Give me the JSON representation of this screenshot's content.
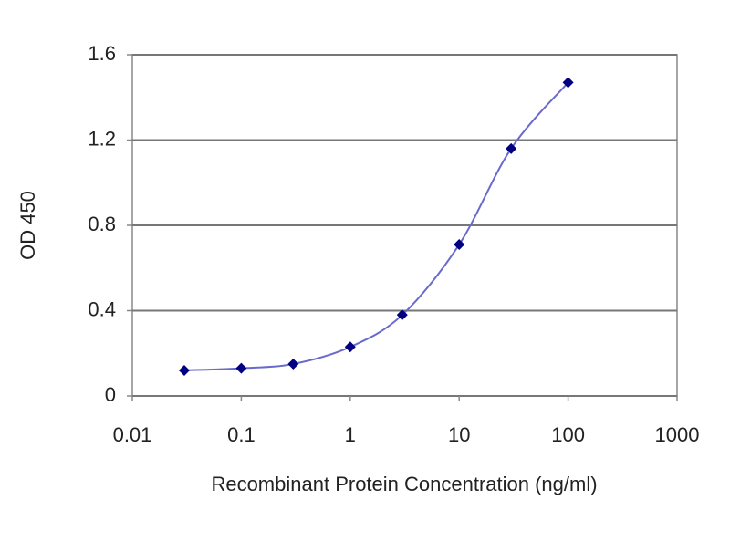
{
  "chart_data": {
    "type": "line",
    "x_label": "Recombinant Protein Concentration (ng/ml)",
    "y_label": "OD 450",
    "x_scale": "log",
    "grid": true,
    "xlim": [
      0.01,
      1000
    ],
    "xticks": [
      0.01,
      0.1,
      1,
      10,
      100,
      1000
    ],
    "ylim": [
      0,
      1.6
    ],
    "yticks": [
      0,
      0.4,
      0.8,
      1.2,
      1.6
    ],
    "series": [
      {
        "color": "#000080",
        "line_color": "#6a6acd",
        "x": [
          0.03,
          0.1,
          0.3,
          1,
          3,
          10,
          30,
          100
        ],
        "values": [
          0.12,
          0.13,
          0.15,
          0.23,
          0.38,
          0.71,
          1.16,
          1.47
        ]
      }
    ]
  }
}
